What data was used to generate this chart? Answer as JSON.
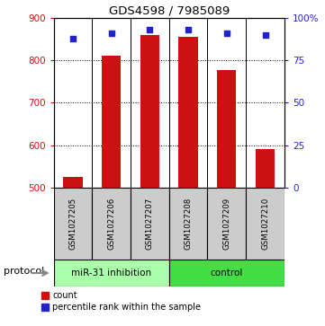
{
  "title": "GDS4598 / 7985089",
  "samples": [
    "GSM1027205",
    "GSM1027206",
    "GSM1027207",
    "GSM1027208",
    "GSM1027209",
    "GSM1027210"
  ],
  "counts": [
    525,
    810,
    860,
    855,
    778,
    590
  ],
  "percentile_ranks": [
    88,
    91,
    93,
    93,
    91,
    90
  ],
  "ylim_left": [
    500,
    900
  ],
  "ylim_right": [
    0,
    100
  ],
  "yticks_left": [
    500,
    600,
    700,
    800,
    900
  ],
  "yticks_right": [
    0,
    25,
    50,
    75,
    100
  ],
  "ytick_labels_right": [
    "0",
    "25",
    "50",
    "75",
    "100%"
  ],
  "bar_color": "#cc1111",
  "dot_color": "#2222cc",
  "protocol_groups": [
    {
      "label": "miR-31 inhibition",
      "start": 0,
      "end": 3,
      "color": "#aaffaa"
    },
    {
      "label": "control",
      "start": 3,
      "end": 6,
      "color": "#44dd44"
    }
  ],
  "protocol_label": "protocol",
  "legend_count_label": "count",
  "legend_percentile_label": "percentile rank within the sample",
  "sample_box_color": "#cccccc",
  "bar_width": 0.5,
  "base_value": 500,
  "figsize": [
    3.61,
    3.63
  ],
  "dpi": 100
}
